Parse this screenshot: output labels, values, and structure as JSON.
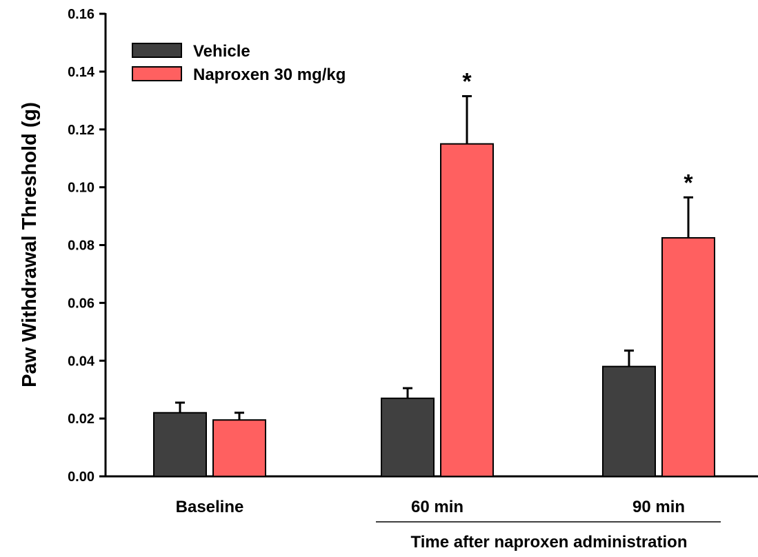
{
  "chart_data": {
    "type": "bar",
    "categories": [
      "Baseline",
      "60 min",
      "90 min"
    ],
    "series": [
      {
        "name": "Vehicle",
        "color": "#404040",
        "values": [
          0.022,
          0.027,
          0.038
        ],
        "errors": [
          0.0035,
          0.0035,
          0.0055
        ]
      },
      {
        "name": "Naproxen 30 mg/kg",
        "color": "#ff6060",
        "values": [
          0.0195,
          0.115,
          0.0825
        ],
        "errors": [
          0.0025,
          0.0165,
          0.014
        ]
      }
    ],
    "significance": [
      {
        "category": "60 min",
        "series": "Naproxen 30 mg/kg",
        "mark": "*"
      },
      {
        "category": "90 min",
        "series": "Naproxen 30 mg/kg",
        "mark": "*"
      }
    ],
    "ylabel": "Paw Withdrawal Threshold (g)",
    "xlabel": "Time after naproxen administration",
    "ylim": [
      0,
      0.16
    ],
    "yticks": [
      "0.00",
      "0.02",
      "0.04",
      "0.06",
      "0.08",
      "0.10",
      "0.12",
      "0.14",
      "0.16"
    ],
    "grid": false,
    "legend": "top-left"
  }
}
